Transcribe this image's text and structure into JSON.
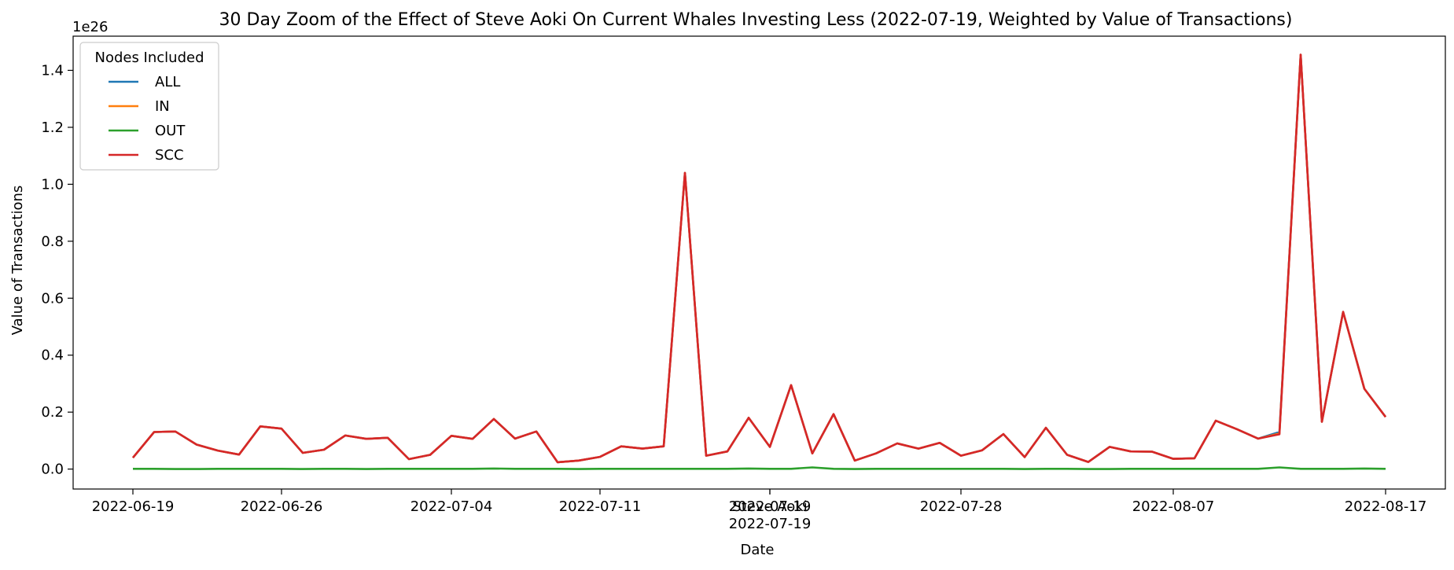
{
  "chart_data": {
    "type": "line",
    "title": "30 Day Zoom of the Effect of Steve Aoki On Current Whales Investing Less (2022-07-19, Weighted by Value of Transactions)",
    "xlabel": "Date",
    "ylabel": "Value of Transactions",
    "y_scale_label": "1e26",
    "ylim": [
      -0.07,
      1.52
    ],
    "y_ticks": [
      0.0,
      0.2,
      0.4,
      0.6,
      0.8,
      1.0,
      1.2,
      1.4
    ],
    "y_tick_labels": [
      "0.0",
      "0.2",
      "0.4",
      "0.6",
      "0.8",
      "1.0",
      "1.2",
      "1.4"
    ],
    "x_start": "2022-06-19",
    "x_end": "2022-08-17",
    "x_ticks": [
      "2022-06-19",
      "2022-06-26",
      "2022-07-04",
      "2022-07-11",
      "2022-07-19",
      "2022-07-28",
      "2022-08-07",
      "2022-08-17"
    ],
    "x_tick_labels": [
      "2022-06-19",
      "2022-06-26",
      "2022-07-04",
      "2022-07-11",
      "2022-07-19",
      "2022-07-28",
      "2022-08-07",
      "2022-08-17"
    ],
    "event": {
      "date": "2022-07-19",
      "label": "Steve Aoki"
    },
    "grid": false,
    "legend": {
      "title": "Nodes Included",
      "placement": "upper-left",
      "entries": [
        "ALL",
        "IN",
        "OUT",
        "SCC"
      ]
    },
    "x": [
      "2022-06-19",
      "2022-06-20",
      "2022-06-21",
      "2022-06-22",
      "2022-06-23",
      "2022-06-24",
      "2022-06-25",
      "2022-06-26",
      "2022-06-27",
      "2022-06-28",
      "2022-06-29",
      "2022-06-30",
      "2022-07-01",
      "2022-07-02",
      "2022-07-03",
      "2022-07-04",
      "2022-07-05",
      "2022-07-06",
      "2022-07-07",
      "2022-07-08",
      "2022-07-09",
      "2022-07-10",
      "2022-07-11",
      "2022-07-12",
      "2022-07-13",
      "2022-07-14",
      "2022-07-15",
      "2022-07-16",
      "2022-07-17",
      "2022-07-18",
      "2022-07-19",
      "2022-07-20",
      "2022-07-21",
      "2022-07-22",
      "2022-07-23",
      "2022-07-24",
      "2022-07-25",
      "2022-07-26",
      "2022-07-27",
      "2022-07-28",
      "2022-07-29",
      "2022-07-30",
      "2022-07-31",
      "2022-08-01",
      "2022-08-02",
      "2022-08-03",
      "2022-08-04",
      "2022-08-05",
      "2022-08-06",
      "2022-08-07",
      "2022-08-08",
      "2022-08-09",
      "2022-08-10",
      "2022-08-11",
      "2022-08-12",
      "2022-08-13",
      "2022-08-14",
      "2022-08-15",
      "2022-08-16",
      "2022-08-17"
    ],
    "series": [
      {
        "name": "ALL",
        "color": "#1f77b4",
        "values": [
          0.04,
          0.13,
          0.132,
          0.086,
          0.065,
          0.051,
          0.15,
          0.142,
          0.057,
          0.068,
          0.118,
          0.106,
          0.11,
          0.035,
          0.05,
          0.117,
          0.106,
          0.176,
          0.107,
          0.132,
          0.024,
          0.03,
          0.043,
          0.08,
          0.072,
          0.08,
          1.04,
          0.047,
          0.062,
          0.18,
          0.078,
          0.295,
          0.055,
          0.193,
          0.03,
          0.055,
          0.09,
          0.072,
          0.092,
          0.047,
          0.066,
          0.123,
          0.042,
          0.145,
          0.05,
          0.025,
          0.078,
          0.062,
          0.061,
          0.036,
          0.038,
          0.17,
          0.14,
          0.107,
          0.13,
          1.455,
          0.166,
          0.552,
          0.282,
          0.183
        ]
      },
      {
        "name": "IN",
        "color": "#ff7f0e",
        "values": [
          0.04,
          0.13,
          0.132,
          0.086,
          0.065,
          0.051,
          0.15,
          0.142,
          0.057,
          0.068,
          0.118,
          0.106,
          0.11,
          0.035,
          0.05,
          0.117,
          0.106,
          0.176,
          0.107,
          0.132,
          0.024,
          0.03,
          0.043,
          0.08,
          0.072,
          0.08,
          1.04,
          0.047,
          0.062,
          0.18,
          0.078,
          0.295,
          0.055,
          0.193,
          0.03,
          0.055,
          0.09,
          0.072,
          0.092,
          0.047,
          0.066,
          0.123,
          0.042,
          0.145,
          0.05,
          0.025,
          0.078,
          0.062,
          0.061,
          0.036,
          0.038,
          0.17,
          0.14,
          0.107,
          0.125,
          1.455,
          0.166,
          0.552,
          0.282,
          0.183
        ]
      },
      {
        "name": "OUT",
        "color": "#2ca02c",
        "values": [
          0.001,
          0.001,
          0.0,
          0.0,
          0.001,
          0.001,
          0.001,
          0.001,
          0.0,
          0.001,
          0.001,
          0.0,
          0.001,
          0.001,
          0.001,
          0.001,
          0.001,
          0.002,
          0.001,
          0.001,
          0.001,
          0.0,
          0.001,
          0.001,
          0.001,
          0.001,
          0.001,
          0.001,
          0.001,
          0.002,
          0.001,
          0.001,
          0.006,
          0.001,
          0.0,
          0.001,
          0.001,
          0.001,
          0.001,
          0.001,
          0.001,
          0.001,
          0.0,
          0.001,
          0.001,
          0.0,
          0.0,
          0.001,
          0.001,
          0.001,
          0.001,
          0.001,
          0.001,
          0.001,
          0.006,
          0.001,
          0.001,
          0.001,
          0.002,
          0.001
        ]
      },
      {
        "name": "SCC",
        "color": "#d62728",
        "values": [
          0.04,
          0.13,
          0.132,
          0.086,
          0.065,
          0.051,
          0.15,
          0.142,
          0.057,
          0.068,
          0.118,
          0.106,
          0.11,
          0.035,
          0.05,
          0.117,
          0.106,
          0.176,
          0.107,
          0.132,
          0.024,
          0.03,
          0.043,
          0.08,
          0.072,
          0.08,
          1.04,
          0.047,
          0.062,
          0.18,
          0.078,
          0.295,
          0.055,
          0.193,
          0.03,
          0.055,
          0.09,
          0.072,
          0.092,
          0.047,
          0.066,
          0.123,
          0.042,
          0.145,
          0.05,
          0.025,
          0.078,
          0.062,
          0.061,
          0.036,
          0.038,
          0.17,
          0.14,
          0.107,
          0.122,
          1.455,
          0.166,
          0.552,
          0.282,
          0.183
        ]
      }
    ]
  }
}
